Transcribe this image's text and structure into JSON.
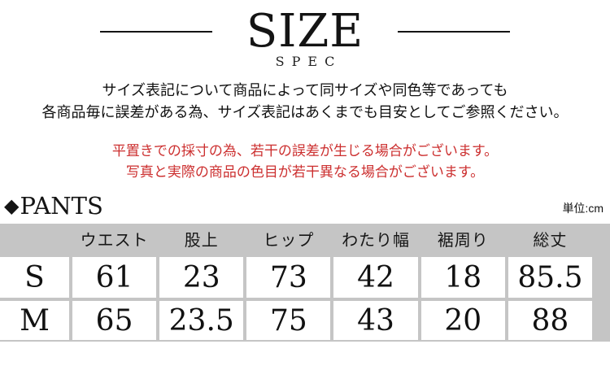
{
  "header": {
    "title": "SIZE",
    "subtitle": "SPEC"
  },
  "size_notice": {
    "line1": "サイズ表記について商品によって同サイズや同色等であっても",
    "line2": "各商品毎に誤差がある為、サイズ表記はあくまでも目安としてご参照ください。"
  },
  "measurement_warning": {
    "color": "#cc2f2f",
    "line1": "平置きでの採寸の為、若干の誤差が生じる場合がございます。",
    "line2": "写真と実際の商品の色目が若干異なる場合がございます。"
  },
  "section": {
    "diamond_icon": "◆",
    "label": "PANTS",
    "unit_label": "単位:cm"
  },
  "size_table": {
    "header_bg": "#c5c5c5",
    "columns": [
      "",
      "ウエスト",
      "股上",
      "ヒップ",
      "わたり幅",
      "裾周り",
      "総丈"
    ],
    "rows": [
      {
        "size": "S",
        "values": [
          "61",
          "23",
          "73",
          "42",
          "18",
          "85.5"
        ]
      },
      {
        "size": "M",
        "values": [
          "65",
          "23.5",
          "75",
          "43",
          "20",
          "88"
        ]
      }
    ]
  }
}
